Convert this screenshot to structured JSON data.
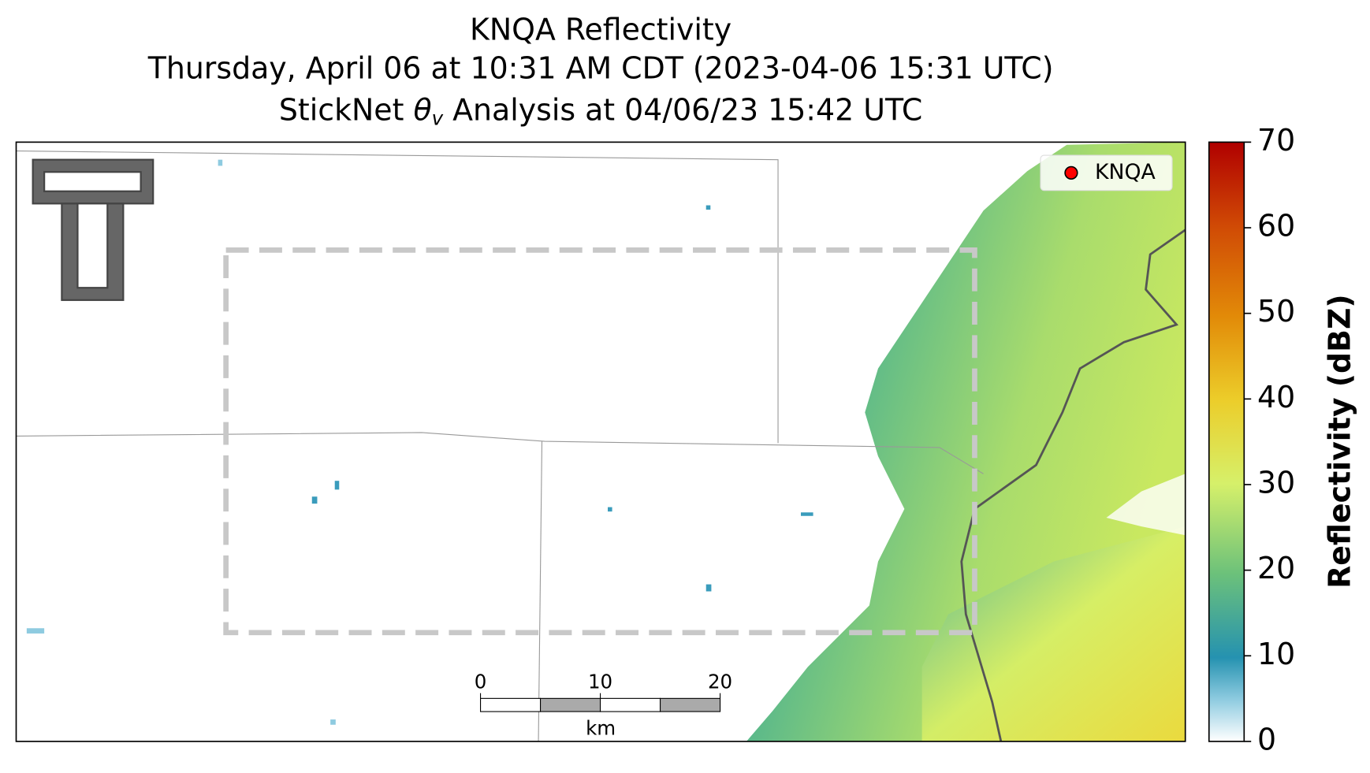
{
  "title_lines": [
    "KNQA Reflectivity",
    "Thursday, April 06 at 10:31 AM CDT (2023-04-06 15:31 UTC)"
  ],
  "analysis_title": {
    "prefix": "StickNet ",
    "symbol": "θ",
    "subscript": "v",
    "suffix": " Analysis at 04/06/23 15:42 UTC"
  },
  "legend": {
    "label": "KNQA",
    "color": "#ff0000"
  },
  "colorbar": {
    "label": "Reflectivity (dBZ)",
    "lim": [
      0,
      70
    ],
    "ticks": [
      0,
      10,
      20,
      30,
      40,
      50,
      60,
      70
    ]
  },
  "scale_bar": {
    "lim": [
      0,
      20
    ],
    "ticks": [
      0,
      10,
      20
    ],
    "unit": "km"
  }
}
